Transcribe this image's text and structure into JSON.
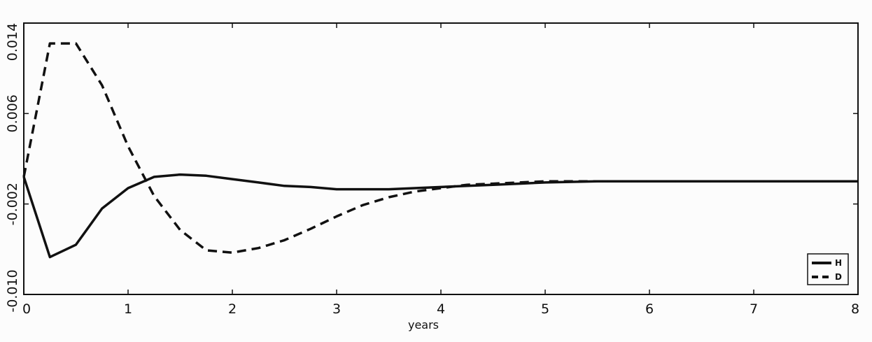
{
  "chart_data": {
    "type": "line",
    "title": "",
    "xlabel": "years",
    "ylabel": "",
    "xlim": [
      0,
      8
    ],
    "ylim": [
      -0.01,
      0.014
    ],
    "x_ticks": [
      0,
      1,
      2,
      3,
      4,
      5,
      6,
      7,
      8
    ],
    "x_tick_labels": [
      "0",
      "1",
      "2",
      "3",
      "4",
      "5",
      "6",
      "7",
      "8"
    ],
    "y_tick_labels": [
      "-0.010",
      "-0.002",
      "0.006",
      "0.014"
    ],
    "y_tick_values": [
      -0.01,
      -0.002,
      0.006,
      0.014
    ],
    "x_label_zero": "0",
    "grid": false,
    "legend_position": "bottom-right",
    "series": [
      {
        "name": "H",
        "style": "solid",
        "color": "#111111",
        "points": [
          [
            0,
            0.0004
          ],
          [
            0.25,
            -0.0067
          ],
          [
            0.5,
            -0.0056
          ],
          [
            0.75,
            -0.0024
          ],
          [
            1,
            -0.0006
          ],
          [
            1.25,
            0.0004
          ],
          [
            1.5,
            0.0006
          ],
          [
            1.75,
            0.0005
          ],
          [
            2,
            0.0002
          ],
          [
            2.25,
            -0.0001
          ],
          [
            2.5,
            -0.0004
          ],
          [
            2.75,
            -0.0005
          ],
          [
            3,
            -0.0007
          ],
          [
            3.25,
            -0.0007
          ],
          [
            3.5,
            -0.0007
          ],
          [
            3.75,
            -0.0006
          ],
          [
            4,
            -0.0005
          ],
          [
            4.25,
            -0.0004
          ],
          [
            4.5,
            -0.0003
          ],
          [
            4.75,
            -0.0002
          ],
          [
            5,
            -0.0001
          ],
          [
            5.5,
            0.0
          ],
          [
            6,
            0.0
          ],
          [
            6.5,
            0.0
          ],
          [
            7,
            0.0
          ],
          [
            7.5,
            0.0
          ],
          [
            8,
            0.0
          ]
        ]
      },
      {
        "name": "D",
        "style": "dashed",
        "color": "#111111",
        "points": [
          [
            0,
            0.0004
          ],
          [
            0.25,
            0.0122
          ],
          [
            0.5,
            0.0122
          ],
          [
            0.75,
            0.0085
          ],
          [
            1,
            0.0031
          ],
          [
            1.25,
            -0.0013
          ],
          [
            1.5,
            -0.0043
          ],
          [
            1.75,
            -0.0061
          ],
          [
            2,
            -0.0063
          ],
          [
            2.25,
            -0.0059
          ],
          [
            2.5,
            -0.0052
          ],
          [
            2.75,
            -0.0042
          ],
          [
            3,
            -0.0031
          ],
          [
            3.25,
            -0.0021
          ],
          [
            3.5,
            -0.0014
          ],
          [
            3.75,
            -0.0009
          ],
          [
            4,
            -0.0006
          ],
          [
            4.25,
            -0.0003
          ],
          [
            4.5,
            -0.0002
          ],
          [
            4.75,
            -0.0001
          ],
          [
            5,
            0.0
          ],
          [
            5.5,
            0.0
          ],
          [
            6,
            0.0
          ],
          [
            6.5,
            0.0
          ],
          [
            7,
            0.0
          ],
          [
            7.5,
            0.0
          ],
          [
            8,
            0.0
          ]
        ]
      }
    ]
  }
}
